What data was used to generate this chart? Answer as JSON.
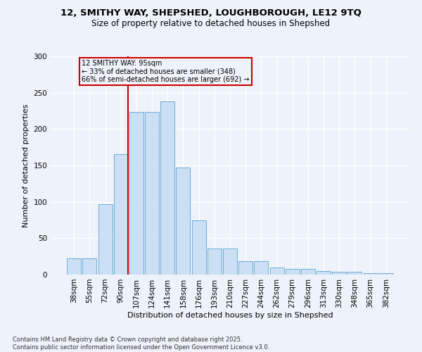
{
  "title_line1": "12, SMITHY WAY, SHEPSHED, LOUGHBOROUGH, LE12 9TQ",
  "title_line2": "Size of property relative to detached houses in Shepshed",
  "xlabel": "Distribution of detached houses by size in Shepshed",
  "ylabel": "Number of detached properties",
  "categories": [
    "38sqm",
    "55sqm",
    "72sqm",
    "90sqm",
    "107sqm",
    "124sqm",
    "141sqm",
    "158sqm",
    "176sqm",
    "193sqm",
    "210sqm",
    "227sqm",
    "244sqm",
    "262sqm",
    "279sqm",
    "296sqm",
    "313sqm",
    "330sqm",
    "348sqm",
    "365sqm",
    "382sqm"
  ],
  "values": [
    22,
    22,
    97,
    165,
    224,
    224,
    238,
    147,
    75,
    36,
    36,
    18,
    18,
    10,
    8,
    8,
    5,
    4,
    4,
    2,
    2
  ],
  "bar_color": "#cce0f5",
  "bar_edge_color": "#6baed6",
  "property_label": "12 SMITHY WAY: 95sqm",
  "annotation_line1": "← 33% of detached houses are smaller (348)",
  "annotation_line2": "66% of semi-detached houses are larger (692) →",
  "footnote_line1": "Contains HM Land Registry data © Crown copyright and database right 2025.",
  "footnote_line2": "Contains public sector information licensed under the Open Government Licence v3.0.",
  "ylim": [
    0,
    300
  ],
  "yticks": [
    0,
    50,
    100,
    150,
    200,
    250,
    300
  ],
  "bg_color": "#eef2fa",
  "grid_color": "#ffffff"
}
